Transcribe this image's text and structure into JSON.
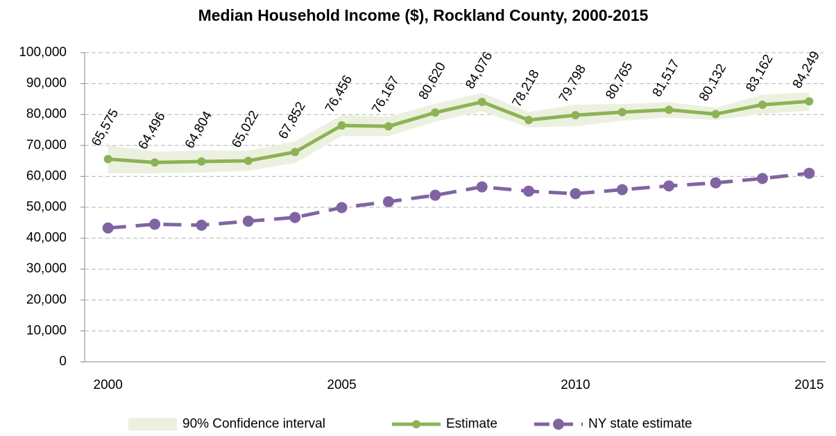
{
  "chart_data": {
    "type": "line",
    "title": "Median Household Income ($), Rockland County, 2000-2015",
    "x": [
      2000,
      2001,
      2002,
      2003,
      2004,
      2005,
      2006,
      2007,
      2008,
      2009,
      2010,
      2011,
      2012,
      2013,
      2014,
      2015
    ],
    "xlim": [
      1999.5,
      2015.5
    ],
    "xticks": [
      2000,
      2005,
      2010,
      2015
    ],
    "ylim": [
      0,
      100000
    ],
    "yticks": [
      0,
      {
        "value": 10000,
        "label": "10,000"
      },
      {
        "value": 20000,
        "label": "20,000"
      },
      {
        "value": 30000,
        "label": "30,000"
      },
      {
        "value": 40000,
        "label": "40,000"
      },
      {
        "value": 50000,
        "label": "50,000"
      },
      {
        "value": 60000,
        "label": "60,000"
      },
      {
        "value": 70000,
        "label": "70,000"
      },
      {
        "value": 80000,
        "label": "80,000"
      },
      {
        "value": 90000,
        "label": "90,000"
      },
      {
        "value": 100000,
        "label": "100,000"
      }
    ],
    "grid": true,
    "legend": "bottom",
    "series": [
      {
        "name": "90% Confidence interval",
        "color": "#ebf1de",
        "kind": "band",
        "lower": [
          61000,
          61000,
          61200,
          61800,
          64300,
          73000,
          73000,
          77700,
          81000,
          75800,
          76200,
          78000,
          79000,
          78200,
          80200,
          81200
        ],
        "upper": [
          70000,
          68000,
          68300,
          68300,
          71300,
          79800,
          79300,
          83500,
          87000,
          80800,
          83200,
          83400,
          84000,
          82200,
          86400,
          87200
        ]
      },
      {
        "name": "Estimate",
        "color": "#8db255",
        "kind": "solid",
        "values": [
          65575,
          64496,
          64804,
          65022,
          67852,
          76456,
          76167,
          80620,
          84076,
          78218,
          79798,
          80765,
          81517,
          80132,
          83162,
          84249
        ],
        "value_labels": [
          "65,575",
          "64,496",
          "64,804",
          "65,022",
          "67,852",
          "76,456",
          "76,167",
          "80,620",
          "84,076",
          "78,218",
          "79,798",
          "80,765",
          "81,517",
          "80,132",
          "83,162",
          "84,249"
        ]
      },
      {
        "name": "NY state estimate",
        "color": "#8064a2",
        "kind": "dashed",
        "values": [
          43300,
          44500,
          44200,
          45500,
          46700,
          49900,
          51800,
          53900,
          56600,
          55200,
          54400,
          55700,
          56900,
          57900,
          59300,
          61000
        ]
      }
    ]
  }
}
